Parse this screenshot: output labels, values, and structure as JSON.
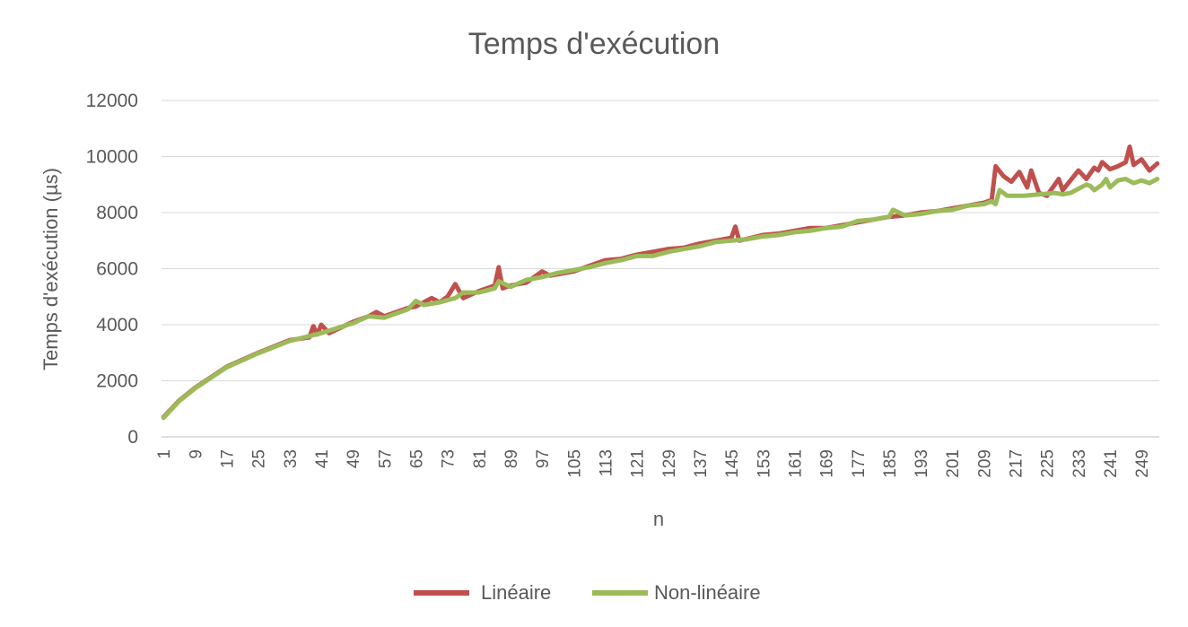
{
  "chart_data": {
    "type": "line",
    "title": "Temps d'exécution",
    "xlabel": "n",
    "ylabel": "Temps d'exécution (µs)",
    "x": {
      "start": 1,
      "end": 253,
      "tick_step": 8
    },
    "ylim": [
      0,
      12000
    ],
    "yticks": [
      0,
      2000,
      4000,
      6000,
      8000,
      10000,
      12000
    ],
    "grid": true,
    "legend_position": "bottom",
    "series": [
      {
        "name": "Linéaire",
        "color": "#c0504d",
        "points": [
          [
            1,
            700
          ],
          [
            5,
            1300
          ],
          [
            9,
            1750
          ],
          [
            17,
            2500
          ],
          [
            25,
            3000
          ],
          [
            33,
            3450
          ],
          [
            38,
            3550
          ],
          [
            39,
            3950
          ],
          [
            40,
            3650
          ],
          [
            41,
            4000
          ],
          [
            43,
            3700
          ],
          [
            49,
            4100
          ],
          [
            53,
            4300
          ],
          [
            55,
            4450
          ],
          [
            57,
            4300
          ],
          [
            63,
            4600
          ],
          [
            65,
            4650
          ],
          [
            69,
            4950
          ],
          [
            71,
            4800
          ],
          [
            73,
            5000
          ],
          [
            75,
            5450
          ],
          [
            77,
            4950
          ],
          [
            81,
            5200
          ],
          [
            85,
            5400
          ],
          [
            86,
            6050
          ],
          [
            87,
            5300
          ],
          [
            89,
            5400
          ],
          [
            93,
            5500
          ],
          [
            97,
            5900
          ],
          [
            99,
            5750
          ],
          [
            105,
            5900
          ],
          [
            109,
            6100
          ],
          [
            113,
            6300
          ],
          [
            117,
            6350
          ],
          [
            121,
            6500
          ],
          [
            125,
            6600
          ],
          [
            129,
            6700
          ],
          [
            133,
            6750
          ],
          [
            137,
            6900
          ],
          [
            141,
            7000
          ],
          [
            145,
            7100
          ],
          [
            146,
            7500
          ],
          [
            147,
            7000
          ],
          [
            153,
            7200
          ],
          [
            157,
            7250
          ],
          [
            161,
            7350
          ],
          [
            165,
            7450
          ],
          [
            169,
            7450
          ],
          [
            173,
            7550
          ],
          [
            177,
            7650
          ],
          [
            181,
            7750
          ],
          [
            185,
            7850
          ],
          [
            189,
            7900
          ],
          [
            193,
            8000
          ],
          [
            197,
            8050
          ],
          [
            201,
            8150
          ],
          [
            205,
            8250
          ],
          [
            209,
            8350
          ],
          [
            211,
            8450
          ],
          [
            212,
            9650
          ],
          [
            214,
            9300
          ],
          [
            216,
            9100
          ],
          [
            218,
            9450
          ],
          [
            220,
            8900
          ],
          [
            221,
            9500
          ],
          [
            223,
            8700
          ],
          [
            225,
            8600
          ],
          [
            227,
            9000
          ],
          [
            228,
            9200
          ],
          [
            229,
            8800
          ],
          [
            231,
            9150
          ],
          [
            233,
            9500
          ],
          [
            235,
            9200
          ],
          [
            237,
            9600
          ],
          [
            238,
            9500
          ],
          [
            239,
            9800
          ],
          [
            241,
            9550
          ],
          [
            243,
            9650
          ],
          [
            245,
            9800
          ],
          [
            246,
            10350
          ],
          [
            247,
            9700
          ],
          [
            249,
            9900
          ],
          [
            251,
            9500
          ],
          [
            253,
            9750
          ]
        ]
      },
      {
        "name": "Non-linéaire",
        "color": "#9bbb59",
        "points": [
          [
            1,
            680
          ],
          [
            5,
            1280
          ],
          [
            9,
            1730
          ],
          [
            17,
            2480
          ],
          [
            25,
            2980
          ],
          [
            33,
            3420
          ],
          [
            41,
            3700
          ],
          [
            49,
            4050
          ],
          [
            53,
            4300
          ],
          [
            57,
            4250
          ],
          [
            63,
            4550
          ],
          [
            65,
            4850
          ],
          [
            67,
            4700
          ],
          [
            71,
            4800
          ],
          [
            75,
            4950
          ],
          [
            77,
            5150
          ],
          [
            81,
            5150
          ],
          [
            85,
            5300
          ],
          [
            86,
            5550
          ],
          [
            89,
            5350
          ],
          [
            93,
            5600
          ],
          [
            97,
            5700
          ],
          [
            101,
            5850
          ],
          [
            105,
            5950
          ],
          [
            109,
            6050
          ],
          [
            113,
            6200
          ],
          [
            117,
            6300
          ],
          [
            121,
            6450
          ],
          [
            125,
            6450
          ],
          [
            129,
            6600
          ],
          [
            133,
            6700
          ],
          [
            137,
            6800
          ],
          [
            141,
            6950
          ],
          [
            145,
            7000
          ],
          [
            149,
            7050
          ],
          [
            153,
            7150
          ],
          [
            157,
            7200
          ],
          [
            161,
            7300
          ],
          [
            165,
            7350
          ],
          [
            169,
            7450
          ],
          [
            173,
            7500
          ],
          [
            177,
            7700
          ],
          [
            181,
            7750
          ],
          [
            185,
            7850
          ],
          [
            186,
            8100
          ],
          [
            189,
            7900
          ],
          [
            193,
            7950
          ],
          [
            197,
            8050
          ],
          [
            201,
            8100
          ],
          [
            205,
            8250
          ],
          [
            209,
            8300
          ],
          [
            211,
            8400
          ],
          [
            212,
            8300
          ],
          [
            213,
            8800
          ],
          [
            215,
            8600
          ],
          [
            219,
            8600
          ],
          [
            223,
            8650
          ],
          [
            227,
            8700
          ],
          [
            229,
            8650
          ],
          [
            231,
            8700
          ],
          [
            233,
            8850
          ],
          [
            235,
            9000
          ],
          [
            236,
            8950
          ],
          [
            237,
            8800
          ],
          [
            239,
            9000
          ],
          [
            240,
            9200
          ],
          [
            241,
            8900
          ],
          [
            243,
            9150
          ],
          [
            245,
            9200
          ],
          [
            247,
            9050
          ],
          [
            249,
            9150
          ],
          [
            251,
            9050
          ],
          [
            253,
            9200
          ]
        ]
      }
    ]
  }
}
